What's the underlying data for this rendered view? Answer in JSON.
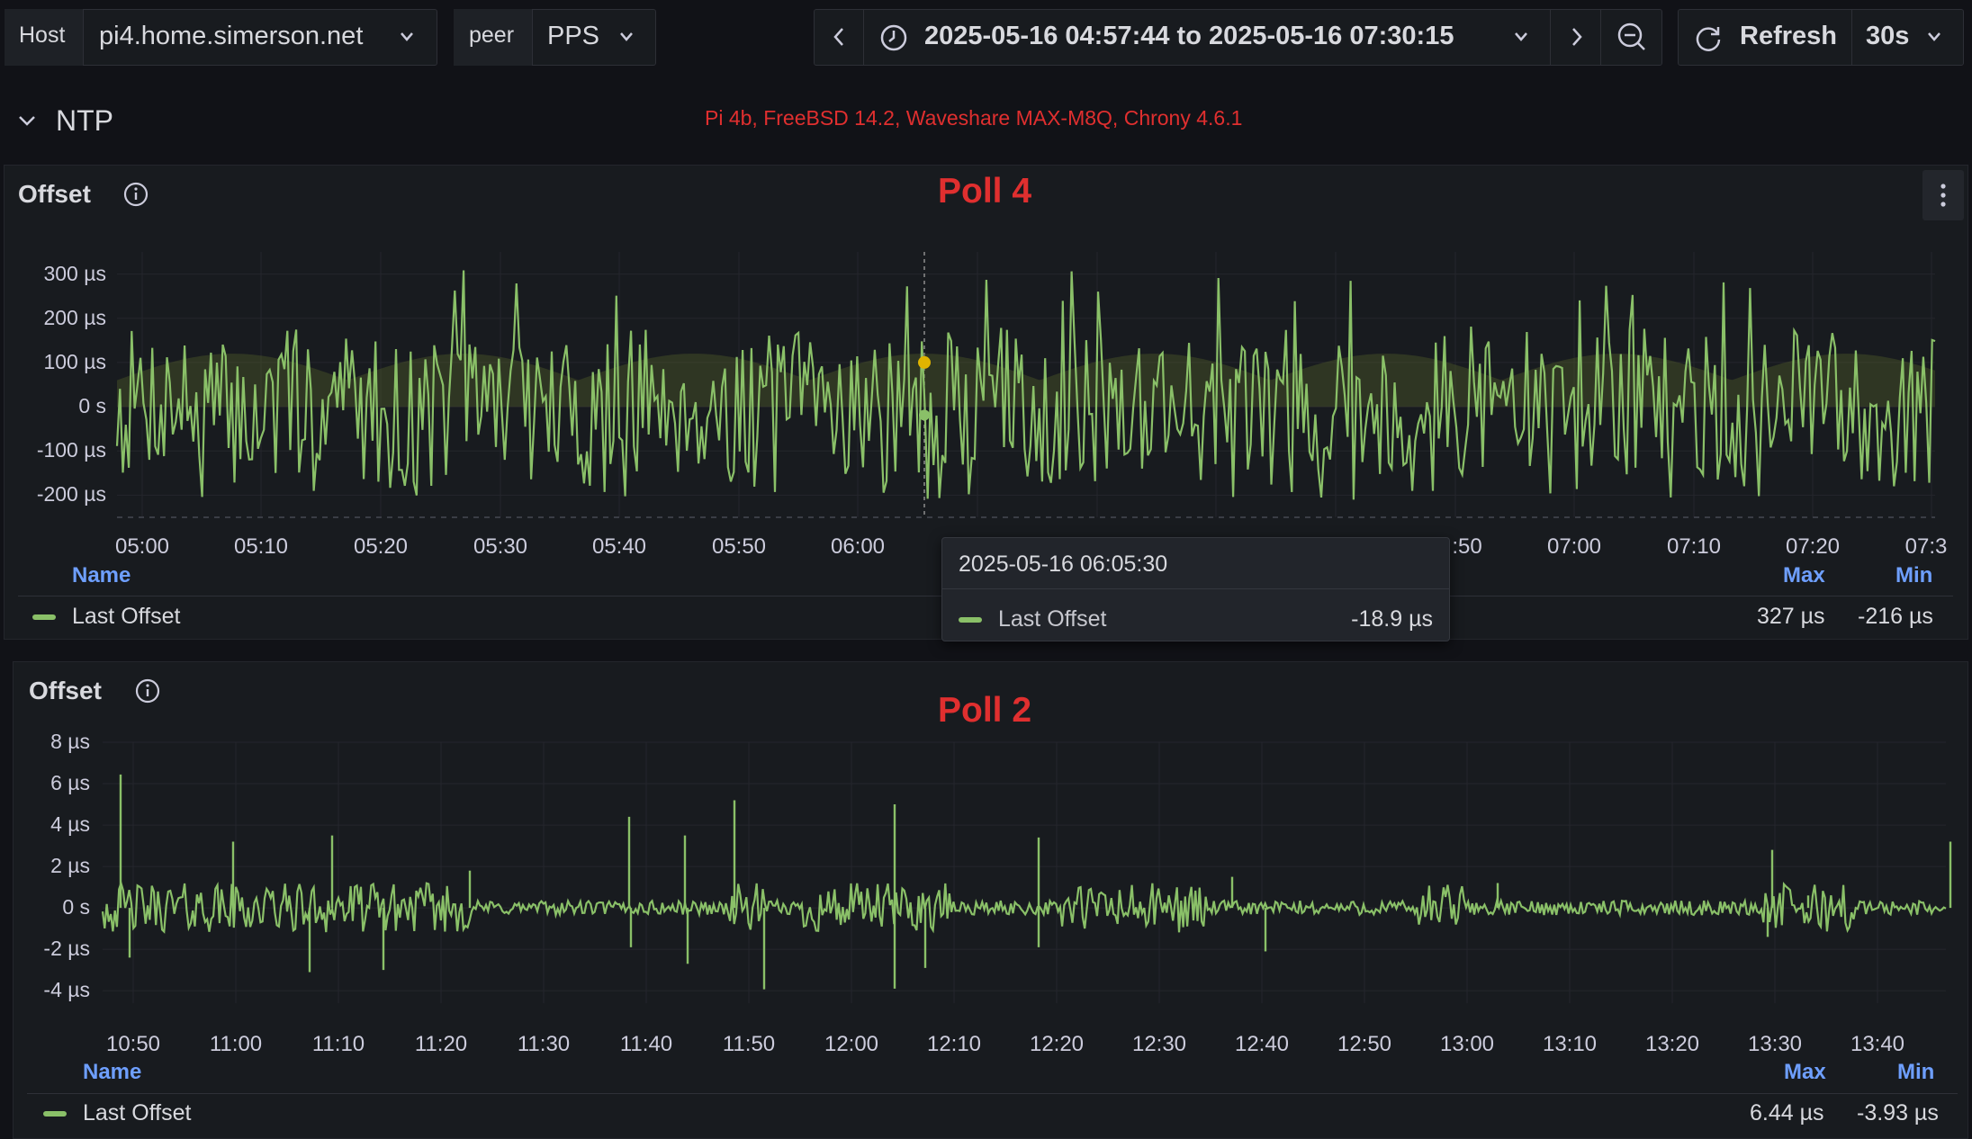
{
  "toolbar": {
    "host_label": "Host",
    "host_value": "pi4.home.simerson.net",
    "peer_label": "peer",
    "peer_value": "PPS",
    "time_range": "2025-05-16 04:57:44 to 2025-05-16 07:30:15",
    "refresh_label": "Refresh",
    "refresh_interval": "30s"
  },
  "row": {
    "title": "NTP",
    "subtitle": "Pi 4b, FreeBSD 14.2, Waveshare MAX-M8Q, Chrony 4.6.1"
  },
  "colors": {
    "series": "#8ac068",
    "accent_text": "#e02f2f",
    "legend_header": "#6e9fff",
    "tooltip_point": "#e0b400"
  },
  "panel1": {
    "title": "Offset",
    "overlay": "Poll 4",
    "y_ticks": [
      "300 µs",
      "200 µs",
      "100 µs",
      "0 s",
      "-100 µs",
      "-200 µs"
    ],
    "x_ticks": [
      "05:00",
      "05:10",
      "05:20",
      "05:30",
      "05:40",
      "05:50",
      "06:00",
      ":50",
      "07:00",
      "07:10",
      "07:20",
      "07:3"
    ],
    "legend": {
      "name_header": "Name",
      "max_header": "Max",
      "min_header": "Min",
      "series_name": "Last Offset",
      "max_value": "327 µs",
      "min_value": "-216 µs"
    },
    "tooltip": {
      "time": "2025-05-16 06:05:30",
      "series_name": "Last Offset",
      "value": "-18.9 µs"
    }
  },
  "panel2": {
    "title": "Offset",
    "overlay": "Poll 2",
    "y_ticks": [
      "8 µs",
      "6 µs",
      "4 µs",
      "2 µs",
      "0 s",
      "-2 µs",
      "-4 µs"
    ],
    "x_ticks": [
      "10:50",
      "11:00",
      "11:10",
      "11:20",
      "11:30",
      "11:40",
      "11:50",
      "12:00",
      "12:10",
      "12:20",
      "12:30",
      "12:40",
      "12:50",
      "13:00",
      "13:10",
      "13:20",
      "13:30",
      "13:40"
    ],
    "legend": {
      "name_header": "Name",
      "max_header": "Max",
      "min_header": "Min",
      "series_name": "Last Offset",
      "max_value": "6.44 µs",
      "min_value": "-3.93 µs"
    }
  },
  "chart_data": [
    {
      "type": "line",
      "title": "Offset",
      "series": [
        {
          "name": "Last Offset",
          "max": 327,
          "min": -216,
          "unit": "µs"
        }
      ],
      "x_range": [
        "2025-05-16 04:57:44",
        "2025-05-16 07:30:15"
      ],
      "ylim": [
        -250,
        350
      ],
      "grid": true,
      "legend_placement": "bottom"
    },
    {
      "type": "line",
      "title": "Offset",
      "series": [
        {
          "name": "Last Offset",
          "max": 6.44,
          "min": -3.93,
          "unit": "µs"
        }
      ],
      "x_range": [
        "10:45",
        "13:47"
      ],
      "ylim": [
        -5,
        8
      ],
      "grid": true,
      "legend_placement": "bottom"
    }
  ]
}
